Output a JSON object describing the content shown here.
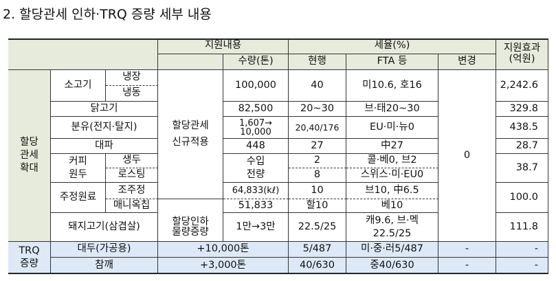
{
  "title": "2. 할당관세 인하·TRQ 증량 세부 내용",
  "header": {
    "support": "지원내용",
    "quantity": "수량(톤)",
    "tariff": "세율(%)",
    "current": "현행",
    "fta": "FTA 등",
    "change": "변경",
    "effect": "지원효과",
    "effect_unit": "(억원)"
  },
  "groups": {
    "expand": "할당\n관세\n확대",
    "trq": "TRQ\n증량"
  },
  "support_texts": {
    "new_apply": "할당관세\n신규적용",
    "cut": "할당인하",
    "increase": "물량증량",
    "change_value": "0"
  },
  "rows": {
    "beef": {
      "name": "소고기",
      "sub1": "냉장",
      "sub2": "냉동",
      "qty": "100,000",
      "current": "40",
      "fta": "미10.6, 호16",
      "effect": "2,242.6"
    },
    "chicken": {
      "name": "닭고기",
      "qty": "82,500",
      "current": "20~30",
      "fta": "브·태20~30",
      "effect": "329.8"
    },
    "milk": {
      "name": "분유(전지·탈지)",
      "qty": "1,607→\n10,000",
      "current": "20,40/176",
      "fta": "EU·미·뉴0",
      "effect": "438.5"
    },
    "leek": {
      "name": "대파",
      "qty": "448",
      "current": "27",
      "fta": "中27",
      "effect": "28.7"
    },
    "coffee": {
      "name": "커피\n원두",
      "sub1": "생두",
      "sub2": "로스팅",
      "qty": "수입\n전량",
      "current1": "2",
      "current2": "8",
      "fta1": "콜·베0, 브2",
      "fta2": "스위스·미·EU0",
      "effect": "38.7"
    },
    "liquor": {
      "name": "주정원료",
      "sub1": "조주정",
      "sub2": "매니옥칩",
      "qty1": "64,833(kℓ)",
      "qty2": "51,833",
      "current1": "10",
      "current2": "할10",
      "fta1": "브10, 中6.5",
      "fta2": "베10",
      "effect": "100.0"
    },
    "pork": {
      "name": "돼지고기(삼겹살)",
      "qty": "1만→3만",
      "current": "22.5/25",
      "fta": "캐9.6, 브·멕\n22.5/25",
      "effect": "111.8"
    },
    "soy": {
      "name": "대두(가공용)",
      "qty": "+10,000톤",
      "current": "5/487",
      "fta": "미·중·러5/487",
      "change": "-",
      "effect": "-"
    },
    "sesame": {
      "name": "참깨",
      "qty": "+3,000톤",
      "current": "40/630",
      "fta": "중40/630",
      "change": "-",
      "effect": "-"
    }
  }
}
